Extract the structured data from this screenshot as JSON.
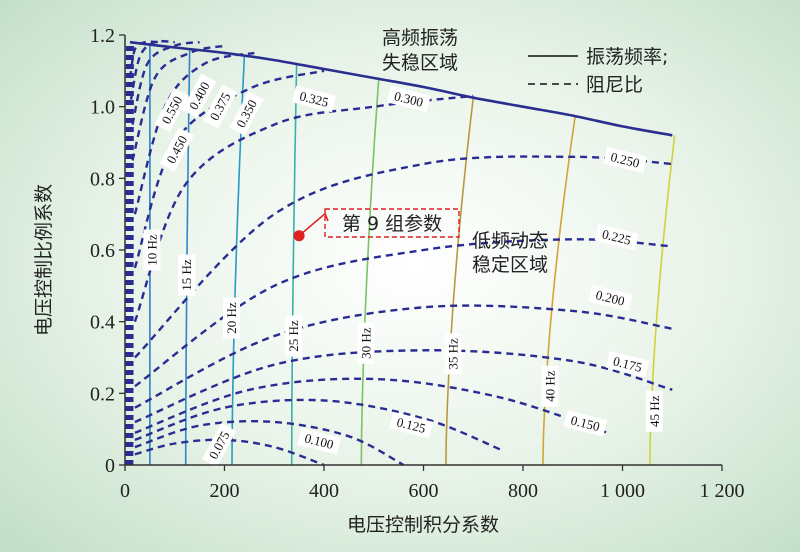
{
  "chart_data": {
    "type": "line",
    "xlabel": "电压控制积分系数",
    "ylabel": "电压控制比例系数",
    "xlim": [
      0,
      1200
    ],
    "ylim": [
      0,
      1.2
    ],
    "xticks": [
      0,
      200,
      400,
      600,
      800,
      1000,
      1200
    ],
    "xtick_labels": [
      "0",
      "200",
      "400",
      "600",
      "800",
      "1 000",
      "1 200"
    ],
    "yticks": [
      0,
      0.2,
      0.4,
      0.6,
      0.8,
      1.0,
      1.2
    ],
    "ytick_labels": [
      "0",
      "0.2",
      "0.4",
      "0.6",
      "0.8",
      "1.0",
      "1.2"
    ],
    "legend": {
      "position": "top-right",
      "entries": [
        {
          "label": "振荡频率;",
          "style": "solid"
        },
        {
          "label": "阻尼比",
          "style": "dashed"
        }
      ]
    },
    "regions": [
      {
        "label_lines": [
          "高频振荡",
          "失稳区域"
        ]
      },
      {
        "label_lines": [
          "低频动态",
          "稳定区域"
        ]
      }
    ],
    "stability_boundary": {
      "x": [
        10,
        100,
        200,
        300,
        400,
        500,
        600,
        700,
        800,
        900,
        1000,
        1100
      ],
      "y": [
        1.18,
        1.165,
        1.15,
        1.13,
        1.105,
        1.08,
        1.055,
        1.025,
        1.0,
        0.975,
        0.945,
        0.92
      ]
    },
    "frequency_series": [
      {
        "label": "10 Hz",
        "x_at_y0": 50,
        "x_at_top": 50,
        "color": "#2E7FC8",
        "label_pos": [
          55,
          0.6
        ]
      },
      {
        "label": "15 Hz",
        "x_at_y0": 122,
        "x_at_top": 130,
        "color": "#2E86C8",
        "label_pos": [
          125,
          0.53
        ]
      },
      {
        "label": "20 Hz",
        "x_at_y0": 215,
        "x_at_top": 240,
        "color": "#2A9BC4",
        "label_pos": [
          215,
          0.41
        ]
      },
      {
        "label": "25 Hz",
        "x_at_y0": 335,
        "x_at_top": 345,
        "color": "#39B0A8",
        "label_pos": [
          340,
          0.36
        ]
      },
      {
        "label": "30 Hz",
        "x_at_y0": 475,
        "x_at_top": 510,
        "color": "#7CC266",
        "label_pos": [
          485,
          0.34
        ]
      },
      {
        "label": "35 Hz",
        "x_at_y0": 645,
        "x_at_top": 700,
        "color": "#B79A3E",
        "label_pos": [
          660,
          0.31
        ]
      },
      {
        "label": "40 Hz",
        "x_at_y0": 840,
        "x_at_top": 905,
        "color": "#D3A43A",
        "label_pos": [
          855,
          0.22
        ]
      },
      {
        "label": "45 Hz",
        "x_at_y0": 1055,
        "x_at_top": 1105,
        "color": "#CFD23A",
        "label_pos": [
          1065,
          0.15
        ]
      }
    ],
    "damping_series": [
      {
        "label": "0.075",
        "x": [
          20,
          100,
          200,
          300,
          400
        ],
        "y": [
          0.03,
          0.06,
          0.07,
          0.05,
          0.0
        ],
        "label_pos": [
          190,
          0.055
        ]
      },
      {
        "label": "0.100",
        "x": [
          20,
          150,
          300,
          450,
          560
        ],
        "y": [
          0.05,
          0.11,
          0.12,
          0.08,
          0.0
        ],
        "label_pos": [
          390,
          0.065
        ]
      },
      {
        "label": "0.125",
        "x": [
          20,
          200,
          400,
          600,
          760
        ],
        "y": [
          0.07,
          0.16,
          0.18,
          0.13,
          0.04
        ],
        "label_pos": [
          575,
          0.11
        ]
      },
      {
        "label": "0.150",
        "x": [
          20,
          250,
          500,
          750,
          970
        ],
        "y": [
          0.09,
          0.21,
          0.24,
          0.19,
          0.09
        ],
        "label_pos": [
          925,
          0.115
        ]
      },
      {
        "label": "0.175",
        "x": [
          20,
          300,
          600,
          900,
          1100
        ],
        "y": [
          0.12,
          0.28,
          0.32,
          0.29,
          0.21
        ],
        "label_pos": [
          1010,
          0.28
        ]
      },
      {
        "label": "0.200",
        "x": [
          20,
          300,
          600,
          900,
          1100
        ],
        "y": [
          0.16,
          0.36,
          0.44,
          0.43,
          0.38
        ],
        "label_pos": [
          975,
          0.465
        ]
      },
      {
        "label": "0.225",
        "x": [
          20,
          300,
          600,
          900,
          1100
        ],
        "y": [
          0.22,
          0.5,
          0.6,
          0.63,
          0.61
        ],
        "label_pos": [
          988,
          0.635
        ]
      },
      {
        "label": "0.250",
        "x": [
          20,
          300,
          600,
          900,
          1100
        ],
        "y": [
          0.3,
          0.7,
          0.84,
          0.86,
          0.84
        ],
        "label_pos": [
          1005,
          0.85
        ]
      },
      {
        "label": "0.300",
        "x": [
          20,
          120,
          300,
          500,
          700
        ],
        "y": [
          0.4,
          0.78,
          0.95,
          1.0,
          1.03
        ],
        "label_pos": [
          570,
          1.02
        ]
      },
      {
        "label": "0.325",
        "x": [
          20,
          100,
          250,
          400
        ],
        "y": [
          0.55,
          0.9,
          1.05,
          1.1
        ],
        "label_pos": [
          380,
          1.02
        ]
      },
      {
        "label": "0.350",
        "x": [
          20,
          80,
          160,
          260
        ],
        "y": [
          0.7,
          1.0,
          1.12,
          1.15
        ],
        "label_pos": [
          245,
          0.98
        ]
      },
      {
        "label": "0.375",
        "x": [
          15,
          60,
          130,
          200
        ],
        "y": [
          0.85,
          1.08,
          1.15,
          1.17
        ],
        "label_pos": [
          192,
          1.0
        ]
      },
      {
        "label": "0.400",
        "x": [
          15,
          45,
          100,
          150
        ],
        "y": [
          0.95,
          1.12,
          1.17,
          1.18
        ],
        "label_pos": [
          150,
          1.03
        ]
      },
      {
        "label": "0.450",
        "x": [
          12,
          30,
          60,
          100
        ],
        "y": [
          1.02,
          1.14,
          1.18,
          1.18
        ],
        "label_pos": [
          105,
          0.88
        ]
      },
      {
        "label": "0.550",
        "x": [
          10,
          20,
          40,
          70
        ],
        "y": [
          1.08,
          1.16,
          1.18,
          1.18
        ],
        "label_pos": [
          95,
          0.99
        ]
      }
    ],
    "annotation": {
      "label": "第 9 组参数",
      "point": {
        "x": 350,
        "y": 0.64
      }
    }
  }
}
